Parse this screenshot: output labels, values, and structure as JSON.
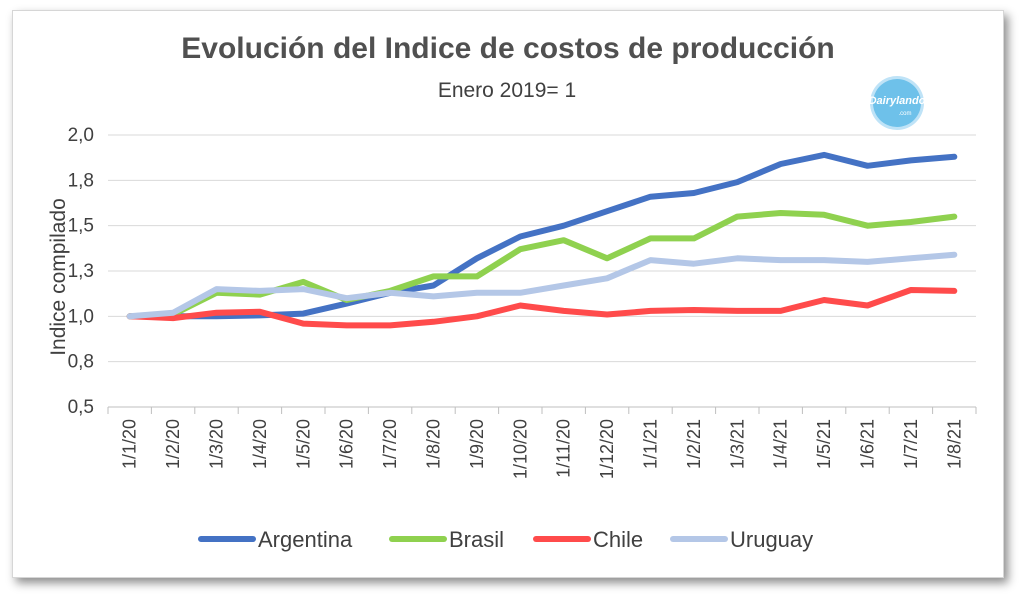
{
  "chart_data": {
    "type": "line",
    "title": "Evolución del Indice de costos de producción",
    "subtitle": "Enero 2019= 1",
    "ylabel": "Indice compilado",
    "xlabel": "",
    "ylim": [
      0.5,
      2.0
    ],
    "y_ticks": [
      0.5,
      0.75,
      1.0,
      1.25,
      1.5,
      1.75,
      2.0
    ],
    "y_tick_labels": [
      "0,5",
      "0,8",
      "1,0",
      "1,3",
      "1,5",
      "1,8",
      "2,0"
    ],
    "grid": true,
    "legend_position": "bottom",
    "categories": [
      "1/1/20",
      "1/2/20",
      "1/3/20",
      "1/4/20",
      "1/5/20",
      "1/6/20",
      "1/7/20",
      "1/8/20",
      "1/9/20",
      "1/10/20",
      "1/11/20",
      "1/12/20",
      "1/1/21",
      "1/2/21",
      "1/3/21",
      "1/4/21",
      "1/5/21",
      "1/6/21",
      "1/7/21",
      "1/8/21"
    ],
    "series": [
      {
        "name": "Argentina",
        "color": "#4472c4",
        "values": [
          1.0,
          1.0,
          1.0,
          1.005,
          1.015,
          1.07,
          1.13,
          1.17,
          1.32,
          1.44,
          1.5,
          1.58,
          1.66,
          1.68,
          1.74,
          1.84,
          1.89,
          1.83,
          1.86,
          1.88
        ]
      },
      {
        "name": "Brasil",
        "color": "#8fd14f",
        "values": [
          1.0,
          1.01,
          1.13,
          1.12,
          1.19,
          1.09,
          1.14,
          1.22,
          1.22,
          1.37,
          1.42,
          1.32,
          1.43,
          1.43,
          1.55,
          1.57,
          1.56,
          1.5,
          1.52,
          1.55
        ]
      },
      {
        "name": "Chile",
        "color": "#ff4b4b",
        "values": [
          1.0,
          0.99,
          1.02,
          1.025,
          0.96,
          0.95,
          0.95,
          0.97,
          1.0,
          1.06,
          1.03,
          1.01,
          1.03,
          1.035,
          1.03,
          1.03,
          1.09,
          1.06,
          1.145,
          1.14
        ]
      },
      {
        "name": "Uruguay",
        "color": "#b4c7e7",
        "values": [
          1.0,
          1.02,
          1.15,
          1.14,
          1.15,
          1.1,
          1.13,
          1.11,
          1.13,
          1.13,
          1.17,
          1.21,
          1.31,
          1.29,
          1.32,
          1.31,
          1.31,
          1.3,
          1.32,
          1.34
        ]
      }
    ]
  },
  "logo": {
    "text": "Dairylando",
    "sub": ".com"
  }
}
